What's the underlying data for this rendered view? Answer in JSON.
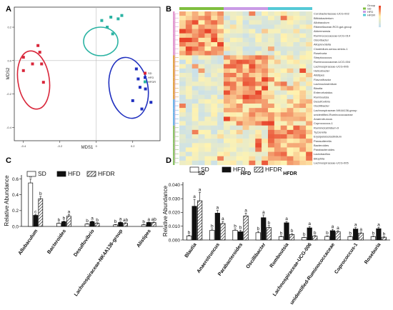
{
  "panels": {
    "a": "A",
    "b": "B",
    "c": "C",
    "d": "D"
  },
  "chart_data": [
    {
      "type": "scatter",
      "xlabel": "MDS1",
      "ylabel": "MDS2",
      "xticks": [
        "-0.4",
        "-0.2",
        "0",
        "0.2"
      ],
      "yticks": [
        "0.2",
        "0.0",
        "-0.2",
        "-0.4"
      ],
      "xlim": [
        -0.45,
        0.35
      ],
      "ylim": [
        -0.48,
        0.32
      ],
      "legend": [
        "SD",
        "HFD",
        "HFDR"
      ],
      "legend_position": "right",
      "colors": {
        "SD": "#d9263a",
        "HFD": "#1f2fbf",
        "HFDR": "#2bb3a3"
      },
      "series": [
        {
          "name": "SD",
          "points": [
            [
              -0.4,
              -0.06
            ],
            [
              -0.35,
              -0.02
            ],
            [
              -0.32,
              0.09
            ],
            [
              -0.31,
              0.05
            ],
            [
              -0.3,
              -0.02
            ],
            [
              -0.29,
              -0.13
            ],
            [
              -0.4,
              0.02
            ]
          ]
        },
        {
          "name": "HFD",
          "points": [
            [
              0.22,
              -0.05
            ],
            [
              0.23,
              -0.11
            ],
            [
              0.24,
              -0.16
            ],
            [
              0.27,
              -0.17
            ],
            [
              0.2,
              -0.24
            ],
            [
              0.25,
              -0.29
            ],
            [
              0.3,
              -0.25
            ]
          ]
        },
        {
          "name": "HFDR",
          "points": [
            [
              0.03,
              0.24
            ],
            [
              0.06,
              0.2
            ],
            [
              0.09,
              0.16
            ],
            [
              0.12,
              0.25
            ],
            [
              0.14,
              0.27
            ],
            [
              0.08,
              0.26
            ]
          ]
        }
      ]
    },
    {
      "type": "heatmap",
      "groups": [
        "SD",
        "HFD",
        "HFDR"
      ],
      "rows": [
        "Corobacteriaceae-UCG-002",
        "Bifidobacterium",
        "Allobaculum",
        "Rikenellaceae-RC9-gut-group",
        "Akkermansia",
        "Ruminococcaceae-UCG-014",
        "Odoribacter",
        "Alloprevotella",
        "Clostridium-sensu-stricto-1",
        "Roseburia",
        "Streptococcus",
        "Ruminococcaceae-UCG-004",
        "Lachnospiraceae-UCG-006",
        "Helicobacter",
        "Alistipes",
        "Flavonifractor",
        "Lachnoclostridium",
        "Blautia",
        "Enterorhabdus",
        "Romboutsia",
        "Desulfovibrio",
        "Oscillibacter",
        "Lachnospiraceae-NK4A136-group",
        "unidentified-Ruminococcaceae",
        "Anaerotruncus",
        "Coprococcus-1",
        "Ruminiclostridium-9",
        "Tyzzerella",
        "Erysipelatoclostridium",
        "Parasutterella",
        "Bacteroides",
        "Parabacteroides",
        "Lactobacillus",
        "Bilophila",
        "Lachnospiraceae-UCG-005"
      ],
      "legend_top": [
        "Group",
        "SD",
        "HFD",
        "HFDR"
      ],
      "colors": {
        "high": "#e8432a",
        "mid": "#fff3b0",
        "low": "#cfe3f2"
      }
    },
    {
      "type": "bar",
      "ylabel": "Relative Abundance",
      "yticks": [
        "0.0",
        "0.2",
        "0.4",
        "0.6"
      ],
      "ylim": [
        0,
        0.65
      ],
      "legend": [
        "SD",
        "HFD",
        "HFDR"
      ],
      "categories": [
        "Allobaculum",
        "Bacteroides",
        "Desulfovibrio",
        "Lachnospiraceae-NK4A136-group",
        "Alistipes"
      ],
      "series": [
        {
          "name": "SD",
          "values": [
            0.55,
            0.04,
            0.03,
            0.02,
            0.02
          ],
          "errors": [
            0.05,
            0.005,
            0.005,
            0.005,
            0.004
          ]
        },
        {
          "name": "HFD",
          "values": [
            0.14,
            0.06,
            0.06,
            0.05,
            0.05
          ],
          "errors": [
            0.01,
            0.008,
            0.008,
            0.008,
            0.006
          ]
        },
        {
          "name": "HFDR",
          "values": [
            0.35,
            0.13,
            0.04,
            0.04,
            0.05
          ],
          "errors": [
            0.03,
            0.02,
            0.006,
            0.006,
            0.006
          ]
        }
      ],
      "labels": [
        [
          "a",
          "c",
          "b"
        ],
        [
          "b",
          "b",
          "a"
        ],
        [
          "b",
          "a",
          "b"
        ],
        [
          "b",
          "a",
          "ab"
        ],
        [
          "b",
          "a",
          "ab"
        ]
      ]
    },
    {
      "type": "bar",
      "ylabel": "Relative Abundance",
      "yticks": [
        "0.000",
        "0.010",
        "0.020",
        "0.030",
        "0.040"
      ],
      "ylim": [
        0,
        0.042
      ],
      "legend": [
        "SD",
        "HFD",
        "HFDR"
      ],
      "categories": [
        "Blautia",
        "Anaerotruncus",
        "Parabacteroides",
        "Oscillibacter",
        "Romboutsia",
        "Lachnospiraceae-UCG-006",
        "unidentified-Ruminococcaceae",
        "Coprococcus-1",
        "Roseburia"
      ],
      "series": [
        {
          "name": "SD",
          "values": [
            0.003,
            0.007,
            0.007,
            0.0053,
            0.0025,
            0.0018,
            0.0026,
            0.0025,
            0.0025
          ],
          "errors": [
            0.0005,
            0.001,
            0.001,
            0.001,
            0.0004,
            0.0003,
            0.0004,
            0.0004,
            0.0004
          ]
        },
        {
          "name": "HFD",
          "values": [
            0.0245,
            0.0195,
            0.006,
            0.0162,
            0.0125,
            0.0088,
            0.0068,
            0.008,
            0.0082
          ],
          "errors": [
            0.005,
            0.002,
            0.001,
            0.002,
            0.001,
            0.001,
            0.001,
            0.001,
            0.001
          ]
        },
        {
          "name": "HFDR",
          "values": [
            0.0285,
            0.012,
            0.0175,
            0.009,
            0.004,
            0.0028,
            0.006,
            0.005,
            0.002
          ],
          "errors": [
            0.006,
            0.0015,
            0.002,
            0.0015,
            0.0006,
            0.0004,
            0.0008,
            0.0008,
            0.0004
          ]
        }
      ],
      "labels": [
        [
          "b",
          "a",
          "a"
        ],
        [
          "b",
          "a",
          "a"
        ],
        [
          "b",
          "b",
          "a"
        ],
        [
          "b",
          "a",
          "b"
        ],
        [
          "b",
          "a",
          "b"
        ],
        [
          "b",
          "a",
          "b"
        ],
        [
          "b",
          "a",
          "a"
        ],
        [
          "b",
          "a",
          "a"
        ],
        [
          "b",
          "a",
          "b"
        ]
      ]
    }
  ],
  "heatmap_group_labels": [
    "SD",
    "HFD",
    "HFDR"
  ]
}
